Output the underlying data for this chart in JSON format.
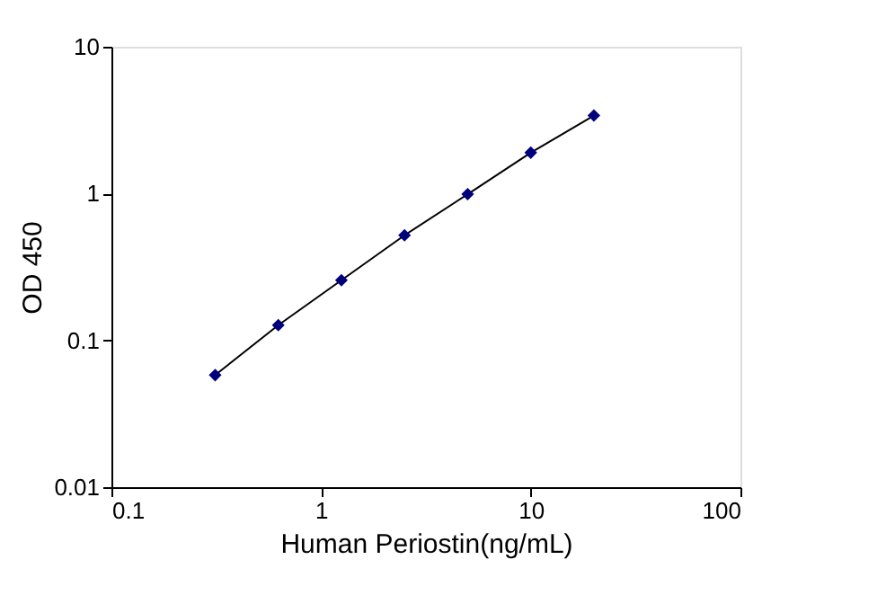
{
  "chart_data": {
    "type": "scatter",
    "xlabel": "Human  Periostin(ng/mL)",
    "ylabel": "OD 450",
    "log": "xy",
    "grid": false,
    "xlim": [
      0.1,
      100
    ],
    "xticks": [
      0.1,
      1,
      10,
      100
    ],
    "ylim": [
      0.01,
      10
    ],
    "yticks": [
      0.01,
      0.1,
      1,
      10
    ],
    "x": [
      0.3125,
      0.625,
      1.25,
      2.5,
      5,
      10,
      20
    ],
    "series": [
      {
        "type": "line",
        "color": "#000000",
        "marker": "none",
        "line_style": "solid",
        "values": [
          0.058,
          0.127,
          0.257,
          0.52,
          0.99,
          1.9,
          3.4
        ]
      },
      {
        "color": "#00007f",
        "marker": "diamond",
        "values": [
          0.058,
          0.127,
          0.257,
          0.52,
          0.99,
          1.9,
          3.4
        ]
      }
    ]
  }
}
